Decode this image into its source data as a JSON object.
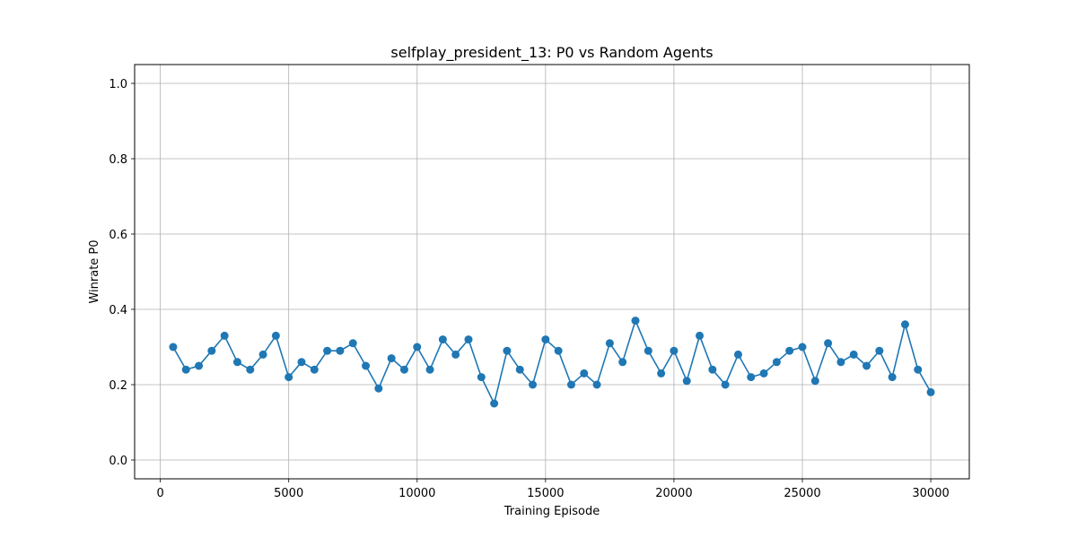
{
  "chart_data": {
    "type": "line",
    "title": "selfplay_president_13: P0 vs Random Agents",
    "xlabel": "Training Episode",
    "ylabel": "Winrate P0",
    "xlim": [
      -1000,
      31500
    ],
    "ylim": [
      -0.05,
      1.05
    ],
    "xticks": [
      0,
      5000,
      10000,
      15000,
      20000,
      25000,
      30000
    ],
    "yticks": [
      "0.0",
      "0.2",
      "0.4",
      "0.6",
      "0.8",
      "1.0"
    ],
    "grid": true,
    "marker": "circle",
    "color": "#1f77b4",
    "series": [
      {
        "x": [
          500,
          1000,
          1500,
          2000,
          2500,
          3000,
          3500,
          4000,
          4500,
          5000,
          5500,
          6000,
          6500,
          7000,
          7500,
          8000,
          8500,
          9000,
          9500,
          10000,
          10500,
          11000,
          11500,
          12000,
          12500,
          13000,
          13500,
          14000,
          14500,
          15000,
          15500,
          16000,
          16500,
          17000,
          17500,
          18000,
          18500,
          19000,
          19500,
          20000,
          20500,
          21000,
          21500,
          22000,
          22500,
          23000,
          23500,
          24000,
          24500,
          25000,
          25500,
          26000,
          26500,
          27000,
          27500,
          28000,
          28500,
          29000,
          29500,
          30000
        ],
        "y": [
          0.3,
          0.24,
          0.25,
          0.29,
          0.33,
          0.26,
          0.24,
          0.28,
          0.33,
          0.22,
          0.26,
          0.24,
          0.29,
          0.29,
          0.31,
          0.25,
          0.19,
          0.27,
          0.24,
          0.3,
          0.24,
          0.32,
          0.28,
          0.32,
          0.22,
          0.15,
          0.29,
          0.24,
          0.2,
          0.32,
          0.29,
          0.2,
          0.23,
          0.2,
          0.31,
          0.26,
          0.37,
          0.29,
          0.23,
          0.29,
          0.21,
          0.33,
          0.24,
          0.2,
          0.28,
          0.22,
          0.23,
          0.26,
          0.29,
          0.3,
          0.21,
          0.31,
          0.26,
          0.28,
          0.25,
          0.29,
          0.22,
          0.36,
          0.24,
          0.18
        ]
      }
    ]
  }
}
